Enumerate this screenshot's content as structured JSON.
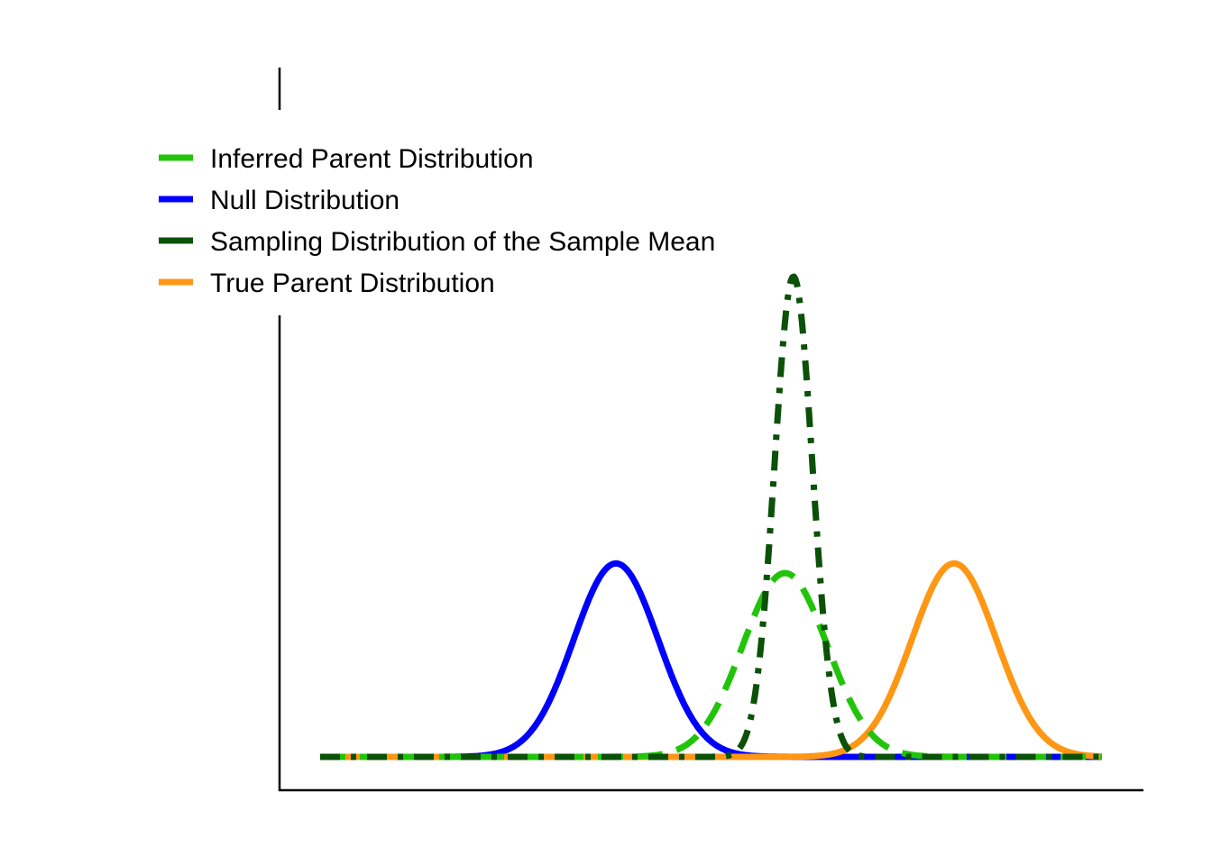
{
  "chart_data": {
    "type": "line",
    "title": "",
    "xlabel": "",
    "ylabel": "",
    "axes": {
      "x_ticks": false,
      "y_ticks": false,
      "grid": false
    },
    "xlim": [
      -7,
      11.5
    ],
    "ylim": [
      0,
      1.02
    ],
    "legend": {
      "position": "top-left",
      "entries": [
        {
          "label": "Inferred Parent Distribution",
          "color": "#22c40a",
          "style": "dashed"
        },
        {
          "label": "Null Distribution",
          "color": "#0000ff",
          "style": "solid"
        },
        {
          "label": "Sampling Distribution of the Sample Mean",
          "color": "#0b5108",
          "style": "dashdot"
        },
        {
          "label": "True Parent Distribution",
          "color": "#ff9614",
          "style": "solid"
        }
      ]
    },
    "series": [
      {
        "name": "Inferred Parent Distribution",
        "kind": "normal",
        "mean": 4,
        "sd": 1,
        "peak": 0.285,
        "color": "#22c40a",
        "style": "dashed"
      },
      {
        "name": "Null Distribution",
        "kind": "normal",
        "mean": 0,
        "sd": 1,
        "peak": 0.3,
        "color": "#0000ff",
        "style": "solid"
      },
      {
        "name": "Sampling Distribution of the Sample Mean",
        "kind": "normal",
        "mean": 4.2,
        "sd": 0.45,
        "peak": 0.745,
        "color": "#0b5108",
        "style": "dashdot"
      },
      {
        "name": "True Parent Distribution",
        "kind": "normal",
        "mean": 8,
        "sd": 1,
        "peak": 0.3,
        "color": "#ff9614",
        "style": "solid"
      }
    ],
    "x_range": [
      -7,
      11.5
    ]
  }
}
